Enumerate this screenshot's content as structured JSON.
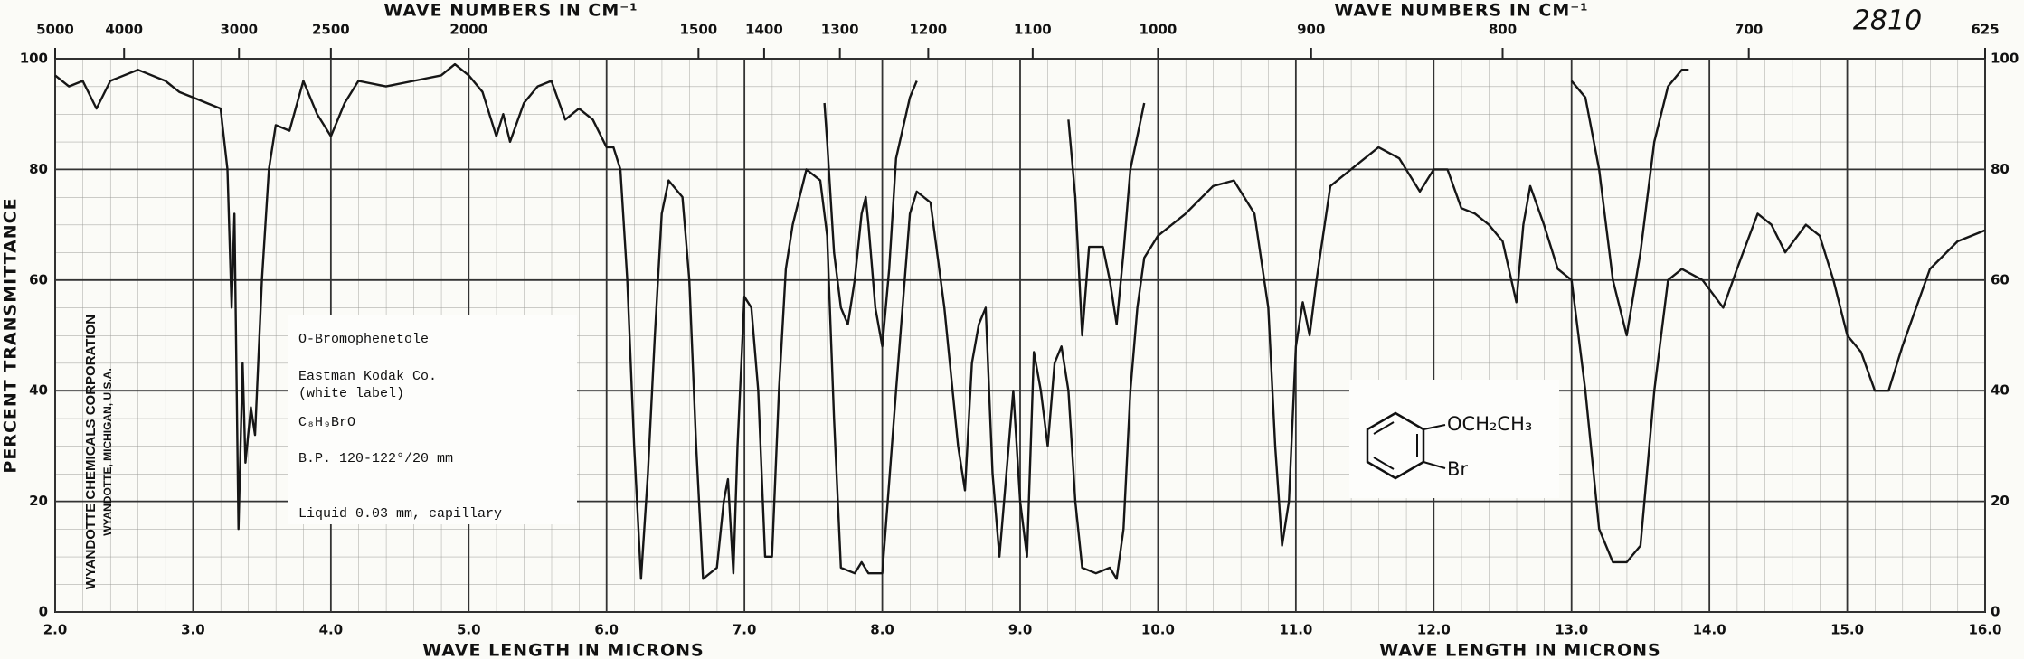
{
  "chart_data": {
    "type": "line",
    "title_top": "WAVE NUMBERS IN CM⁻¹",
    "xlabel": "WAVE LENGTH IN MICRONS",
    "ylabel": "PERCENT TRANSMITTANCE",
    "annotation": "2810",
    "label_box": [
      "O-Bromophenetole",
      "Eastman Kodak Co.",
      "(white label)",
      "C₈H₉BrO",
      "B.P. 120-122°/20 mm",
      "Liquid 0.03 mm, capillary"
    ],
    "maker": [
      "WYANDOTTE CHEMICALS CORPORATION",
      "WYANDOTTE, MICHIGAN, U.S.A."
    ],
    "structure": {
      "substituent_1": "OCH₂CH₃",
      "substituent_2": "Br"
    },
    "xlim": [
      2.0,
      16.0
    ],
    "ylim": [
      0,
      100
    ],
    "xticks": [
      {
        "value": 2,
        "label": "2.0"
      },
      {
        "value": 3,
        "label": "3.0"
      },
      {
        "value": 4,
        "label": "4.0"
      },
      {
        "value": 5,
        "label": "5.0"
      },
      {
        "value": 6,
        "label": "6.0"
      },
      {
        "value": 7,
        "label": "7.0"
      },
      {
        "value": 8,
        "label": "8.0"
      },
      {
        "value": 9,
        "label": "9.0"
      },
      {
        "value": 10,
        "label": "10.0"
      },
      {
        "value": 11,
        "label": "11.0"
      },
      {
        "value": 12,
        "label": "12.0"
      },
      {
        "value": 13,
        "label": "13.0"
      },
      {
        "value": 14,
        "label": "14.0"
      },
      {
        "value": 15,
        "label": "15.0"
      },
      {
        "value": 16,
        "label": "16.0"
      }
    ],
    "yticks": [
      0,
      20,
      40,
      60,
      80,
      100
    ],
    "x2scale": "reciprocal",
    "x2ticks": [
      5000,
      4000,
      3000,
      2500,
      2000,
      1500,
      1400,
      1300,
      1200,
      1100,
      1000,
      900,
      800,
      700,
      625
    ],
    "grid": true,
    "series": [
      {
        "color": "#161616",
        "x": [
          2.0,
          2.1,
          2.2,
          2.3,
          2.4,
          2.6,
          2.8,
          2.9,
          3.0,
          3.1,
          3.2,
          3.25,
          3.28,
          3.3,
          3.33,
          3.36,
          3.38,
          3.42,
          3.45,
          3.5,
          3.55,
          3.6,
          3.7,
          3.8,
          3.9,
          4.0,
          4.1,
          4.2,
          4.4,
          4.6,
          4.8,
          4.9,
          5.0,
          5.1,
          5.2,
          5.25,
          5.3,
          5.4,
          5.5,
          5.6,
          5.7,
          5.8,
          5.9,
          6.0,
          6.05,
          6.1,
          6.15,
          6.2,
          6.25,
          6.3,
          6.35,
          6.4,
          6.45,
          6.55,
          6.6,
          6.65,
          6.7,
          6.8,
          6.85,
          6.88,
          6.92,
          6.95,
          7.0,
          7.05,
          7.1,
          7.15,
          7.2,
          7.25,
          7.3,
          7.35,
          7.45,
          7.55,
          7.6,
          7.65,
          7.7,
          7.8,
          7.85,
          7.9,
          8.0,
          8.1,
          8.2,
          8.25,
          8.35,
          8.45,
          8.55,
          8.6,
          8.65,
          8.7,
          8.75,
          8.8,
          8.85,
          8.9,
          8.95,
          9.0,
          9.05,
          9.1,
          9.15,
          9.2,
          9.25,
          9.3,
          9.35,
          9.4,
          9.45,
          9.55,
          9.65,
          9.7,
          9.75,
          9.8,
          9.85,
          9.9,
          10.0,
          10.2,
          10.4,
          10.55,
          10.7,
          10.8,
          10.85,
          10.9,
          10.95,
          11.0,
          11.05,
          11.1,
          11.15,
          11.25,
          11.4,
          11.6,
          11.75,
          11.9,
          12.0,
          12.1,
          12.2,
          12.3,
          12.4,
          12.5,
          12.6,
          12.65,
          12.7,
          12.8,
          12.9,
          13.0,
          13.1,
          13.2,
          13.3,
          13.4,
          13.5,
          13.6,
          13.7,
          13.8,
          13.95,
          14.1,
          14.2,
          14.35,
          14.45,
          14.55,
          14.7,
          14.8,
          14.9,
          15.0,
          15.1,
          15.2,
          15.3,
          15.4,
          15.6,
          15.8,
          16.0
        ],
        "values": [
          97,
          95,
          96,
          91,
          96,
          98,
          96,
          94,
          93,
          92,
          91,
          80,
          55,
          72,
          15,
          45,
          27,
          37,
          32,
          60,
          80,
          88,
          87,
          96,
          90,
          86,
          92,
          96,
          95,
          96,
          97,
          99,
          97,
          94,
          86,
          90,
          85,
          92,
          95,
          96,
          89,
          91,
          89,
          84,
          84,
          80,
          60,
          30,
          6,
          25,
          50,
          72,
          78,
          75,
          60,
          30,
          6,
          8,
          20,
          24,
          7,
          30,
          57,
          55,
          40,
          10,
          10,
          40,
          62,
          70,
          80,
          78,
          68,
          35,
          8,
          7,
          9,
          7,
          7,
          40,
          72,
          76,
          74,
          55,
          30,
          22,
          45,
          52,
          55,
          25,
          10,
          25,
          40,
          20,
          10,
          47,
          40,
          30,
          45,
          48,
          40,
          20,
          8,
          7,
          8,
          6,
          15,
          40,
          55,
          64,
          68,
          72,
          77,
          78,
          72,
          55,
          30,
          12,
          20,
          48,
          56,
          50,
          60,
          77,
          80,
          84,
          82,
          76,
          80,
          80,
          73,
          72,
          70,
          67,
          56,
          70,
          77,
          70,
          62,
          60,
          40,
          15,
          9,
          9,
          12,
          40,
          60,
          62,
          60,
          55,
          62,
          72,
          70,
          65,
          70,
          68,
          60,
          50,
          47,
          40,
          40,
          48,
          62,
          67,
          69
        ]
      },
      {
        "color": "#161616",
        "x": [
          7.58,
          7.6,
          7.65,
          7.7,
          7.75,
          7.8,
          7.85,
          7.88,
          7.9,
          7.95,
          8.0,
          8.05,
          8.1,
          8.2,
          8.25,
          null,
          9.35,
          9.4,
          9.45,
          9.5,
          9.6,
          9.65,
          9.7,
          9.75,
          9.8,
          9.9,
          null,
          13.0,
          13.1,
          13.2,
          13.3,
          13.4,
          13.5,
          13.6,
          13.7,
          13.8,
          13.85
        ],
        "values": [
          92,
          85,
          65,
          55,
          52,
          60,
          72,
          75,
          70,
          55,
          48,
          62,
          82,
          93,
          96,
          null,
          89,
          75,
          50,
          66,
          66,
          60,
          52,
          65,
          80,
          92,
          null,
          96,
          93,
          80,
          60,
          50,
          65,
          85,
          95,
          98,
          98
        ]
      }
    ]
  }
}
